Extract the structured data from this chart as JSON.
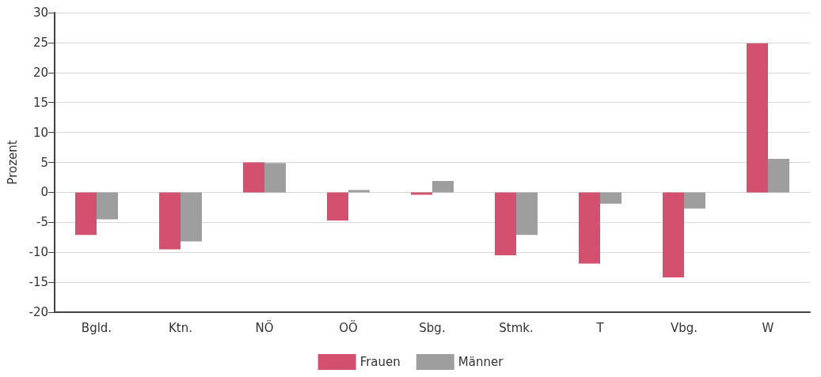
{
  "chart_data": {
    "type": "bar",
    "ylabel": "Prozent",
    "categories": [
      "Bgld.",
      "Ktn.",
      "NÖ",
      "OÖ",
      "Sbg.",
      "Stmk.",
      "T",
      "Vbg.",
      "W"
    ],
    "series": [
      {
        "name": "Frauen",
        "color": "#d4506f",
        "values": [
          -7.1,
          -9.5,
          5.0,
          -4.7,
          -0.4,
          -10.5,
          -11.9,
          -14.2,
          24.9
        ]
      },
      {
        "name": "Männer",
        "color": "#9e9e9e",
        "values": [
          -4.5,
          -8.2,
          4.9,
          0.4,
          1.9,
          -7.1,
          -1.9,
          -2.7,
          5.6
        ]
      }
    ],
    "ylim": [
      -20,
      30
    ],
    "yticks": [
      -20,
      -15,
      -10,
      -5,
      0,
      5,
      10,
      15,
      20,
      25,
      30
    ],
    "grid": "y",
    "legend": "bottom"
  }
}
